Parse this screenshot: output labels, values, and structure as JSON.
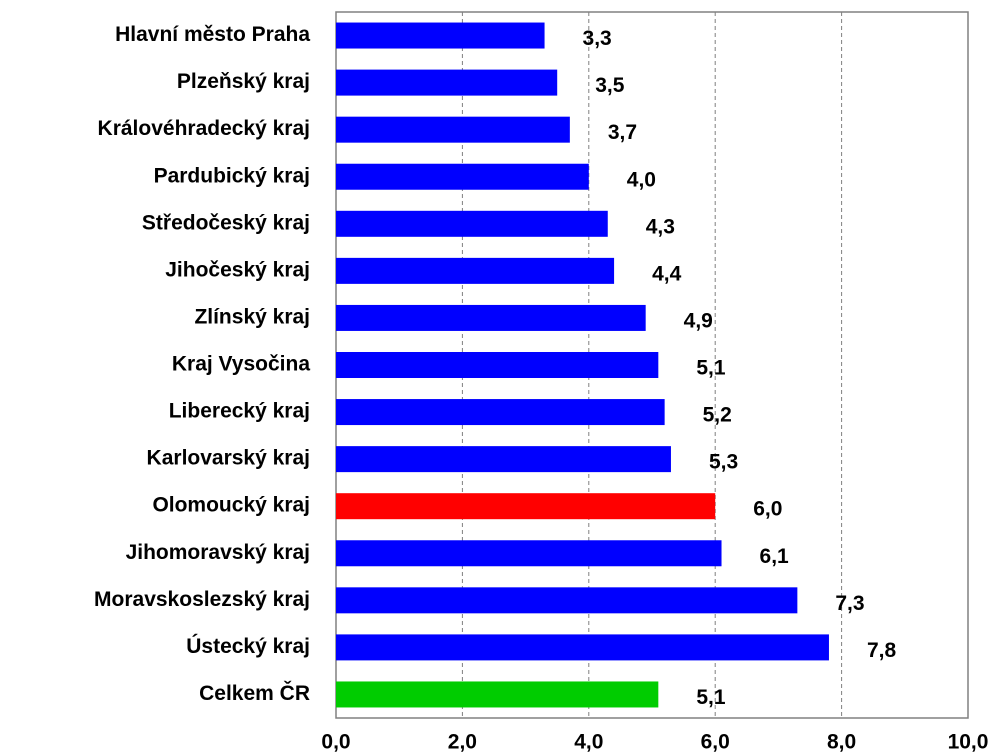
{
  "chart_data": {
    "type": "bar",
    "orientation": "horizontal",
    "categories": [
      "Hlavní město Praha",
      "Plzeňský kraj",
      "Královéhradecký kraj",
      "Pardubický kraj",
      "Středočeský kraj",
      "Jihočeský kraj",
      "Zlínský kraj",
      "Kraj Vysočina",
      "Liberecký kraj",
      "Karlovarský kraj",
      "Olomoucký kraj",
      "Jihomoravský kraj",
      "Moravskoslezský kraj",
      "Ústecký kraj",
      "Celkem ČR"
    ],
    "values": [
      3.3,
      3.5,
      3.7,
      4.0,
      4.3,
      4.4,
      4.9,
      5.1,
      5.2,
      5.3,
      6.0,
      6.1,
      7.3,
      7.8,
      5.1
    ],
    "value_labels": [
      "3,3",
      "3,5",
      "3,7",
      "4,0",
      "4,3",
      "4,4",
      "4,9",
      "5,1",
      "5,2",
      "5,3",
      "6,0",
      "6,1",
      "7,3",
      "7,8",
      "5,1"
    ],
    "colors": [
      "#0000ff",
      "#0000ff",
      "#0000ff",
      "#0000ff",
      "#0000ff",
      "#0000ff",
      "#0000ff",
      "#0000ff",
      "#0000ff",
      "#0000ff",
      "#ff0000",
      "#0000ff",
      "#0000ff",
      "#0000ff",
      "#00cc00"
    ],
    "xlim": [
      0,
      10
    ],
    "xticks": [
      {
        "value": 0,
        "label": "0,0"
      },
      {
        "value": 2,
        "label": "2,0"
      },
      {
        "value": 4,
        "label": "4,0"
      },
      {
        "value": 6,
        "label": "6,0"
      },
      {
        "value": 8,
        "label": "8,0"
      },
      {
        "value": 10,
        "label": "10,0"
      }
    ],
    "grid": true
  }
}
